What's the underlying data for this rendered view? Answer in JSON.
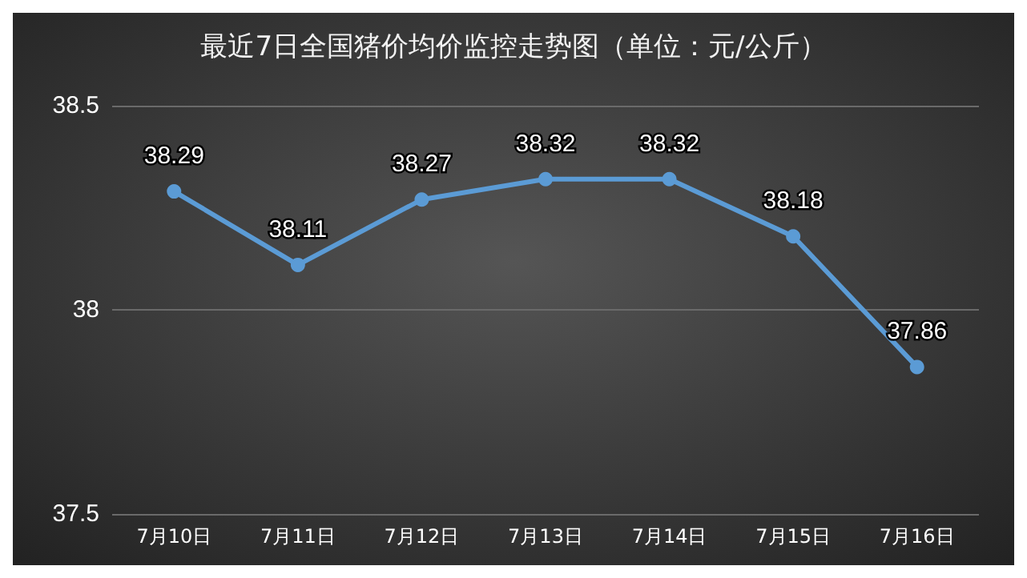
{
  "chart_data": {
    "type": "line",
    "title": "最近7日全国猪价均价监控走势图（单位：元/公斤）",
    "categories": [
      "7月10日",
      "7月11日",
      "7月12日",
      "7月13日",
      "7月14日",
      "7月15日",
      "7月16日"
    ],
    "values": [
      38.29,
      38.11,
      38.27,
      38.32,
      38.32,
      38.18,
      37.86
    ],
    "color": "#5b9bd5",
    "ylim": [
      37.5,
      38.5
    ],
    "yticks": [
      37.5,
      38,
      38.5
    ],
    "grid": "y",
    "marker": "circle",
    "line_style": "solid",
    "data_labels": true
  }
}
